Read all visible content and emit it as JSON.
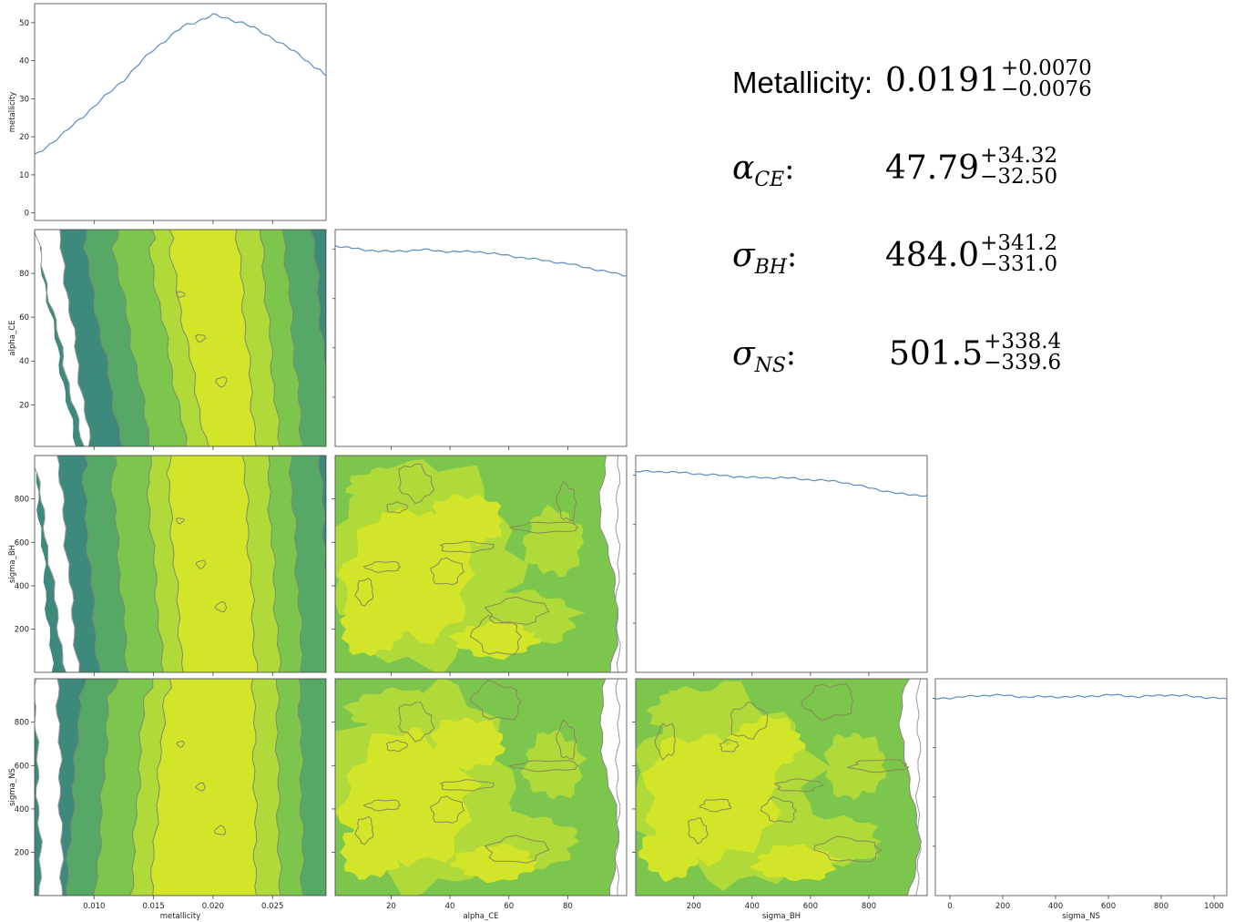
{
  "chart_data": {
    "type": "corner",
    "parameters": [
      "metallicity",
      "alpha_CE",
      "sigma_BH",
      "sigma_NS"
    ],
    "ranges": {
      "metallicity": [
        0.005,
        0.0295
      ],
      "alpha_CE": [
        1,
        100
      ],
      "sigma_BH": [
        1,
        1000
      ],
      "sigma_NS": [
        1,
        1000
      ]
    },
    "ticks": {
      "metallicity": [
        "0.010",
        "0.015",
        "0.020",
        "0.025"
      ],
      "alpha_CE": [
        "20",
        "40",
        "60",
        "80"
      ],
      "sigma_BH": [
        "200",
        "400",
        "600",
        "800"
      ],
      "sigma_NS": [
        "200",
        "400",
        "600",
        "800"
      ],
      "metallicity_hist_y": [
        "0",
        "10",
        "20",
        "30",
        "40",
        "50"
      ],
      "sigma_NS_hist_x": [
        "0",
        "200",
        "400",
        "600",
        "800",
        "1000"
      ]
    },
    "axis_labels": {
      "metallicity": "metallicity",
      "alpha_CE": "alpha_CE",
      "sigma_BH": "sigma_BH",
      "sigma_NS": "sigma_NS"
    },
    "marginals": {
      "metallicity": {
        "x": [
          0.005,
          0.0075,
          0.01,
          0.0125,
          0.015,
          0.0175,
          0.02,
          0.0225,
          0.025,
          0.0275,
          0.0295
        ],
        "y": [
          15,
          21,
          28,
          35,
          43,
          49,
          52,
          50,
          46,
          41,
          36
        ]
      },
      "alpha_CE": {
        "x": [
          1,
          10,
          20,
          30,
          40,
          50,
          60,
          70,
          80,
          90,
          100
        ],
        "y": [
          1.0,
          0.98,
          0.97,
          0.98,
          0.97,
          0.97,
          0.95,
          0.93,
          0.91,
          0.88,
          0.85
        ]
      },
      "sigma_BH": {
        "x": [
          1,
          100,
          200,
          300,
          400,
          500,
          600,
          700,
          800,
          900,
          1000
        ],
        "y": [
          1.0,
          1.0,
          0.99,
          0.98,
          0.97,
          0.97,
          0.96,
          0.95,
          0.92,
          0.89,
          0.88
        ]
      },
      "sigma_NS": {
        "x": [
          1,
          100,
          200,
          300,
          400,
          500,
          600,
          700,
          800,
          900,
          1000
        ],
        "y": [
          0.98,
          0.99,
          1.0,
          0.99,
          0.99,
          0.99,
          1.0,
          0.99,
          1.0,
          0.99,
          0.98
        ]
      }
    },
    "contour_colors": [
      "#3d8a7c",
      "#55a866",
      "#7dc64e",
      "#b0d93a",
      "#d3e528"
    ],
    "line_color": "#5b8cc4"
  },
  "summary": {
    "metallicity": {
      "name": "Metallicity:",
      "value": "0.0191",
      "plus": "+0.0070",
      "minus": "−0.0076"
    },
    "alpha_CE": {
      "symbol": "α",
      "sub": "CE",
      "colon": ":",
      "value": "47.79",
      "plus": "+34.32",
      "minus": "−32.50"
    },
    "sigma_BH": {
      "symbol": "σ",
      "sub": "BH",
      "colon": ":",
      "value": "484.0",
      "plus": "+341.2",
      "minus": "−331.0"
    },
    "sigma_NS": {
      "symbol": "σ",
      "sub": "NS",
      "colon": ":",
      "value": "501.5",
      "plus": "+338.4",
      "minus": "−339.6"
    }
  }
}
